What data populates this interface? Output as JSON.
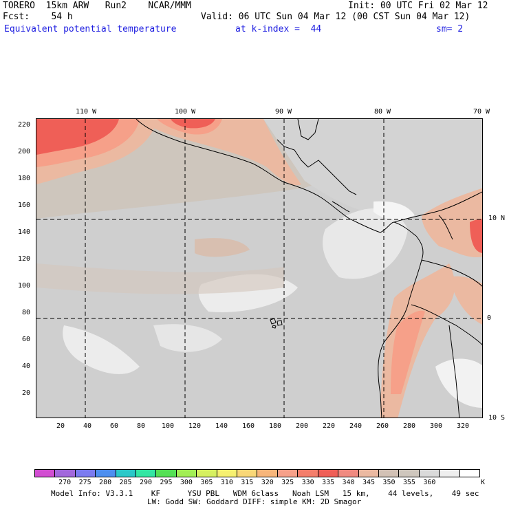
{
  "header": {
    "line1_left": "TORERO  15km ARW   Run2    NCAR/MMM",
    "line1_right": "Init: 00 UTC Fri 02 Mar 12",
    "line2_left": "Fcst:    54 h",
    "line2_right": "Valid: 06 UTC Sun 04 Mar 12 (00 CST Sun 04 Mar 12)",
    "field_name": "Equivalent potential temperature",
    "level": "at k-index =  44",
    "smoothing": "sm= 2"
  },
  "map": {
    "top_lon_labels": [
      "110 W",
      "100 W",
      "90 W",
      "80 W",
      "70 W"
    ],
    "left_grid_labels": [
      "220",
      "200",
      "180",
      "160",
      "140",
      "120",
      "100",
      "80",
      "60",
      "40",
      "20"
    ],
    "bottom_grid_labels": [
      "20",
      "40",
      "60",
      "80",
      "100",
      "120",
      "140",
      "160",
      "180",
      "200",
      "220",
      "240",
      "260",
      "280",
      "300",
      "320"
    ],
    "right_lat_labels": [
      "10 N",
      "0",
      "10 S"
    ],
    "colors": {
      "background_field": "#cec6bd",
      "gray": "#cfcfcf",
      "light": "#ececec",
      "white": "#f7f7f7",
      "warm1": "#ebb9a1",
      "warm2": "#f6a089",
      "warm3": "#f47e6b",
      "hot": "#ef5f57",
      "coast": "#000000"
    }
  },
  "colorbar": {
    "colors": [
      "#d24ed2",
      "#a268dc",
      "#7b7bf0",
      "#4d8ff0",
      "#2bc8c8",
      "#34e6a3",
      "#55e055",
      "#a2ee55",
      "#d6f060",
      "#f6f070",
      "#f9d777",
      "#f7b57a",
      "#f6a089",
      "#f47e6b",
      "#ef5f57",
      "#f08a80",
      "#ebb9a1",
      "#d2c1b5",
      "#cec6bd",
      "#dadada",
      "#efefef",
      "#ffffff"
    ],
    "labels": [
      "270",
      "275",
      "280",
      "285",
      "290",
      "295",
      "300",
      "305",
      "310",
      "315",
      "320",
      "325",
      "330",
      "335",
      "340",
      "345",
      "350",
      "355",
      "360",
      "K"
    ]
  },
  "footer": {
    "line1": "Model Info: V3.3.1    KF      YSU PBL   WDM 6class   Noah LSM   15 km,    44 levels,    49 sec",
    "line2": "LW: Godd SW: Goddard DIFF: simple KM: 2D Smagor"
  }
}
